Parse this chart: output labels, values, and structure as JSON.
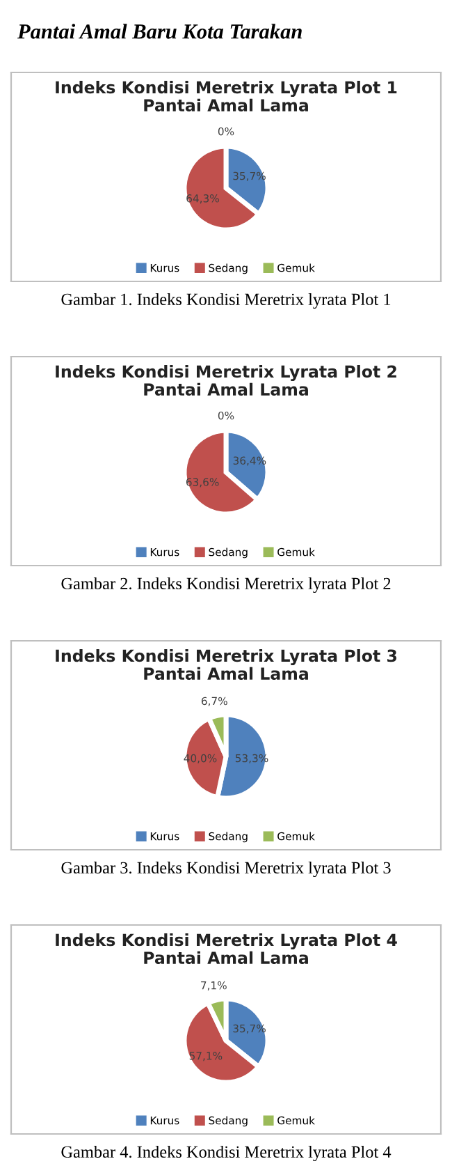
{
  "chart_data": [
    {
      "type": "pie",
      "title": "Indeks Kondisi Meretrix Lyrata Plot 1\nPantai Amal Lama",
      "categories": [
        "Kurus",
        "Sedang",
        "Gemuk"
      ],
      "values": [
        35.7,
        64.3,
        0
      ],
      "colors": [
        "#4f81bd",
        "#c0504d",
        "#9bbb59"
      ],
      "value_labels": [
        "35,7%",
        "64,3%",
        "0%"
      ],
      "legend": "bottom",
      "annotations": [
        "Pantai Amal Baru Kota Tarakan",
        "Gambar 1. Indeks Kondisi Meretrix lyrata Plot 1"
      ]
    },
    {
      "type": "pie",
      "title": "Indeks Kondisi Meretrix Lyrata Plot 2\nPantai Amal Lama",
      "categories": [
        "Kurus",
        "Sedang",
        "Gemuk"
      ],
      "values": [
        36.4,
        63.6,
        0
      ],
      "colors": [
        "#4f81bd",
        "#c0504d",
        "#9bbb59"
      ],
      "value_labels": [
        "36,4%",
        "63,6%",
        "0%"
      ],
      "legend": "bottom",
      "annotations": [
        "Gambar 2. Indeks Kondisi Meretrix lyrata Plot 2"
      ]
    },
    {
      "type": "pie",
      "title": "Indeks Kondisi Meretrix Lyrata Plot 3\nPantai Amal Lama",
      "categories": [
        "Kurus",
        "Sedang",
        "Gemuk"
      ],
      "values": [
        53.3,
        40.0,
        6.7
      ],
      "colors": [
        "#4f81bd",
        "#c0504d",
        "#9bbb59"
      ],
      "value_labels": [
        "53,3%",
        "40,0%",
        "6,7%"
      ],
      "legend": "bottom",
      "annotations": [
        "Gambar 3. Indeks Kondisi Meretrix lyrata Plot 3"
      ]
    },
    {
      "type": "pie",
      "title": "Indeks Kondisi Meretrix Lyrata Plot 4\nPantai Amal Lama",
      "categories": [
        "Kurus",
        "Sedang",
        "Gemuk"
      ],
      "values": [
        35.7,
        57.1,
        7.1
      ],
      "colors": [
        "#4f81bd",
        "#c0504d",
        "#9bbb59"
      ],
      "value_labels": [
        "35,7%",
        "57,1%",
        "7,1%"
      ],
      "legend": "bottom",
      "annotations": [
        "Gambar 4. Indeks Kondisi Meretrix lyrata Plot 4"
      ]
    }
  ]
}
